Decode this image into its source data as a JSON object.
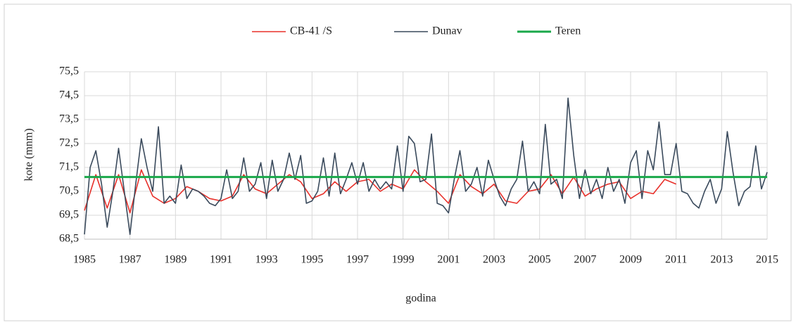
{
  "chart_data": {
    "type": "line",
    "xlabel": "godina",
    "ylabel": "kote  (mnm)",
    "xlim": [
      1985,
      2015
    ],
    "xticks": [
      1985,
      1987,
      1989,
      1991,
      1993,
      1995,
      1997,
      1999,
      2001,
      2003,
      2005,
      2007,
      2009,
      2011,
      2013,
      2015
    ],
    "ylim": [
      68.5,
      75.5
    ],
    "yticks": [
      {
        "value": 68.5,
        "label": "68,5"
      },
      {
        "value": 69.5,
        "label": "69,5"
      },
      {
        "value": 70.5,
        "label": "70,5"
      },
      {
        "value": 71.5,
        "label": "71,5"
      },
      {
        "value": 72.5,
        "label": "72,5"
      },
      {
        "value": 73.5,
        "label": "73,5"
      },
      {
        "value": 74.5,
        "label": "74,5"
      },
      {
        "value": 75.5,
        "label": "75,5"
      }
    ],
    "grid": true,
    "legend": "top",
    "series": [
      {
        "name": "CB-41 /S",
        "color": "#e8302a",
        "x": [
          1985,
          1985.5,
          1986,
          1986.5,
          1987,
          1987.5,
          1988,
          1988.5,
          1989,
          1989.5,
          1990,
          1990.5,
          1991,
          1991.5,
          1992,
          1992.5,
          1993,
          1993.5,
          1994,
          1994.5,
          1995,
          1995.5,
          1996,
          1996.5,
          1997,
          1997.5,
          1998,
          1998.5,
          1999,
          1999.5,
          2000,
          2000.5,
          2001,
          2001.5,
          2002,
          2002.5,
          2003,
          2003.5,
          2004,
          2004.5,
          2005,
          2005.5,
          2006,
          2006.5,
          2007,
          2007.5,
          2008,
          2008.5,
          2009,
          2009.5,
          2010,
          2010.5,
          2011
        ],
        "values": [
          69.7,
          71.2,
          69.8,
          71.2,
          69.6,
          71.4,
          70.3,
          70.0,
          70.2,
          70.7,
          70.5,
          70.2,
          70.1,
          70.3,
          71.2,
          70.6,
          70.4,
          70.8,
          71.2,
          70.9,
          70.2,
          70.4,
          70.9,
          70.5,
          70.9,
          71.0,
          70.5,
          70.8,
          70.6,
          71.4,
          70.9,
          70.5,
          70.0,
          71.2,
          70.7,
          70.4,
          70.8,
          70.1,
          70.0,
          70.5,
          70.6,
          71.2,
          70.4,
          71.1,
          70.3,
          70.6,
          70.8,
          70.9,
          70.2,
          70.5,
          70.4,
          71.0,
          70.8
        ]
      },
      {
        "name": "Dunav",
        "color": "#3a4a5c",
        "x": [
          1985,
          1985.25,
          1985.5,
          1985.75,
          1986,
          1986.25,
          1986.5,
          1986.75,
          1987,
          1987.25,
          1987.5,
          1987.75,
          1988,
          1988.25,
          1988.5,
          1988.75,
          1989,
          1989.25,
          1989.5,
          1989.75,
          1990,
          1990.25,
          1990.5,
          1990.75,
          1991,
          1991.25,
          1991.5,
          1991.75,
          1992,
          1992.25,
          1992.5,
          1992.75,
          1993,
          1993.25,
          1993.5,
          1993.75,
          1994,
          1994.25,
          1994.5,
          1994.75,
          1995,
          1995.25,
          1995.5,
          1995.75,
          1996,
          1996.25,
          1996.5,
          1996.75,
          1997,
          1997.25,
          1997.5,
          1997.75,
          1998,
          1998.25,
          1998.5,
          1998.75,
          1999,
          1999.25,
          1999.5,
          1999.75,
          2000,
          2000.25,
          2000.5,
          2000.75,
          2001,
          2001.25,
          2001.5,
          2001.75,
          2002,
          2002.25,
          2002.5,
          2002.75,
          2003,
          2003.25,
          2003.5,
          2003.75,
          2004,
          2004.25,
          2004.5,
          2004.75,
          2005,
          2005.25,
          2005.5,
          2005.75,
          2006,
          2006.25,
          2006.5,
          2006.75,
          2007,
          2007.25,
          2007.5,
          2007.75,
          2008,
          2008.25,
          2008.5,
          2008.75,
          2009,
          2009.25,
          2009.5,
          2009.75,
          2010,
          2010.25,
          2010.5,
          2010.75,
          2011,
          2011.25,
          2011.5,
          2011.75,
          2012,
          2012.25,
          2012.5,
          2012.75,
          2013,
          2013.25,
          2013.5,
          2013.75,
          2014,
          2014.25,
          2014.5,
          2014.75,
          2015
        ],
        "values": [
          68.7,
          71.5,
          72.2,
          70.8,
          69.0,
          70.5,
          72.3,
          70.5,
          68.7,
          70.8,
          72.7,
          71.5,
          70.5,
          73.2,
          70.0,
          70.3,
          70.0,
          71.6,
          70.2,
          70.6,
          70.5,
          70.3,
          70.0,
          69.9,
          70.2,
          71.4,
          70.2,
          70.5,
          71.9,
          70.5,
          70.8,
          71.7,
          70.2,
          71.8,
          70.5,
          71.0,
          72.1,
          71.0,
          72.0,
          70.0,
          70.1,
          70.5,
          71.9,
          70.3,
          72.1,
          70.4,
          71.0,
          71.7,
          70.8,
          71.7,
          70.5,
          71.0,
          70.6,
          70.9,
          70.6,
          72.4,
          70.5,
          72.8,
          72.5,
          70.9,
          71.0,
          72.9,
          70.0,
          69.9,
          69.6,
          71.0,
          72.2,
          70.5,
          70.8,
          71.5,
          70.3,
          71.8,
          71.0,
          70.3,
          69.9,
          70.6,
          71.0,
          72.6,
          70.5,
          70.9,
          70.4,
          73.3,
          70.8,
          71.0,
          70.2,
          74.4,
          72.0,
          70.2,
          71.4,
          70.4,
          71.0,
          70.2,
          71.5,
          70.5,
          71.0,
          70.0,
          71.7,
          72.2,
          70.2,
          72.2,
          71.4,
          73.4,
          71.2,
          71.2,
          72.5,
          70.5,
          70.4,
          70.0,
          69.8,
          70.5,
          71.0,
          70.0,
          70.6,
          73.0,
          71.3,
          69.9,
          70.5,
          70.7,
          72.4,
          70.6,
          71.3
        ]
      },
      {
        "name": "Teren",
        "color": "#1aa84a",
        "x": [
          1985,
          2015
        ],
        "values": [
          71.1,
          71.1
        ]
      }
    ]
  }
}
